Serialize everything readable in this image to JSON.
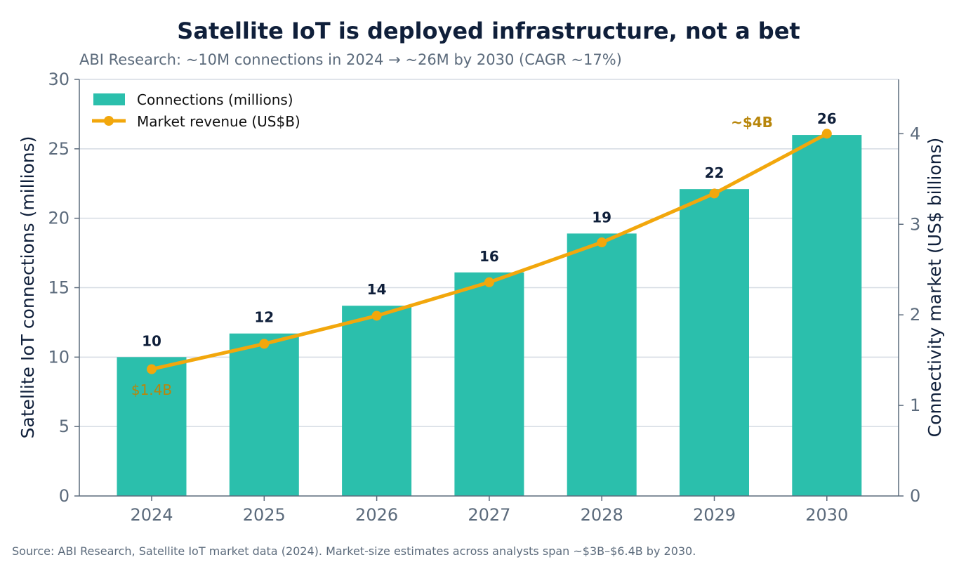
{
  "chart_data": {
    "type": "bar",
    "title": "Satellite IoT is deployed infrastructure, not a bet",
    "subtitle": "ABI Research: ~10M connections in 2024 → ~26M by 2030 (CAGR ~17%)",
    "categories": [
      "2024",
      "2025",
      "2026",
      "2027",
      "2028",
      "2029",
      "2030"
    ],
    "series": [
      {
        "name": "Connections (millions)",
        "type": "bar",
        "axis": "left",
        "values": [
          10,
          11.7,
          13.7,
          16.1,
          18.9,
          22.1,
          26
        ],
        "labels": [
          "10",
          "12",
          "14",
          "16",
          "19",
          "22",
          "26"
        ],
        "color": "#2bbfac"
      },
      {
        "name": "Market revenue (US$B)",
        "type": "line",
        "axis": "right",
        "values": [
          1.4,
          1.68,
          1.99,
          2.36,
          2.8,
          3.34,
          4.0
        ],
        "color": "#f2a70c"
      }
    ],
    "ylabel": "Satellite IoT connections (millions)",
    "ylabel_right": "Connectivity market (US$ billions)",
    "ylim": [
      0,
      30
    ],
    "ylim_right": [
      0,
      4.6
    ],
    "yticks": [
      "0",
      "5",
      "10",
      "15",
      "20",
      "25",
      "30"
    ],
    "yticks_right": [
      "0",
      "1",
      "2",
      "3",
      "4"
    ],
    "annotations": {
      "start": "$1.4B",
      "end": "~$4B"
    },
    "grid": "horizontal",
    "legend": "top-left",
    "source": "Source: ABI Research, Satellite IoT market data (2024). Market-size estimates across analysts span ~$3B–$6.4B by 2030."
  }
}
